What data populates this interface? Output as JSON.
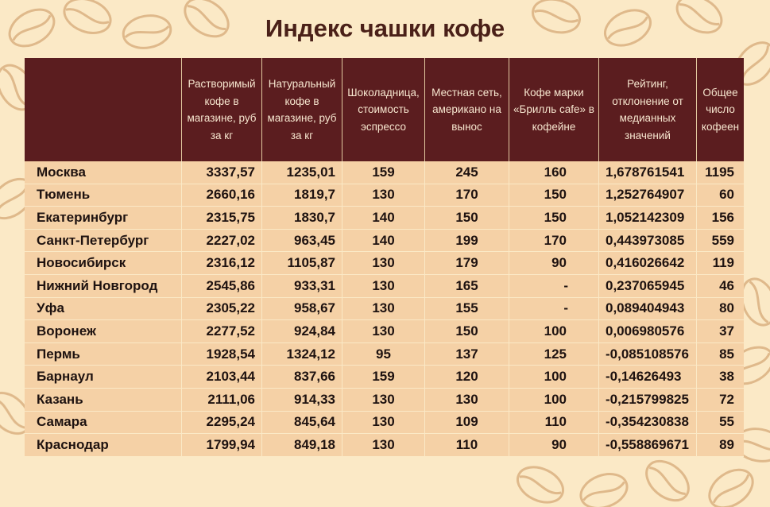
{
  "title": "Индекс чашки кофе",
  "headers": [
    "",
    "Растворимый кофе в магазине, руб за кг",
    "Натуральный кофе в магазине, руб за кг",
    "Шоколадница, стоимость эспрессо",
    "Местная сеть, американо на вынос",
    "Кофе марки «Брилль cafe» в кофейне",
    "Рейтинг, отклонение от медианных значений",
    "Общее число кофеен"
  ],
  "rows": [
    [
      "Москва",
      "3337,57",
      "1235,01",
      "159",
      "245",
      "160",
      "1,678761541",
      "1195"
    ],
    [
      "Тюмень",
      "2660,16",
      "1819,7",
      "130",
      "170",
      "150",
      "1,252764907",
      "60"
    ],
    [
      "Екатеринбург",
      "2315,75",
      "1830,7",
      "140",
      "150",
      "150",
      "1,052142309",
      "156"
    ],
    [
      "Санкт-Петербург",
      "2227,02",
      "963,45",
      "140",
      "199",
      "170",
      "0,443973085",
      "559"
    ],
    [
      "Новосибирск",
      "2316,12",
      "1105,87",
      "130",
      "179",
      "90",
      "0,416026642",
      "119"
    ],
    [
      "Нижний Новгород",
      "2545,86",
      "933,31",
      "130",
      "165",
      "-",
      "0,237065945",
      "46"
    ],
    [
      "Уфа",
      "2305,22",
      "958,67",
      "130",
      "155",
      "-",
      "0,089404943",
      "80"
    ],
    [
      "Воронеж",
      "2277,52",
      "924,84",
      "130",
      "150",
      "100",
      "0,006980576",
      "37"
    ],
    [
      "Пермь",
      "1928,54",
      "1324,12",
      "95",
      "137",
      "125",
      "-0,085108576",
      "85"
    ],
    [
      "Барнаул",
      "2103,44",
      "837,66",
      "159",
      "120",
      "100",
      "-0,14626493",
      "38"
    ],
    [
      "Казань",
      "2111,06",
      "914,33",
      "130",
      "130",
      "100",
      "-0,215799825",
      "72"
    ],
    [
      "Самара",
      "2295,24",
      "845,64",
      "130",
      "109",
      "110",
      "-0,354230838",
      "55"
    ],
    [
      "Краснодар",
      "1799,94",
      "849,18",
      "130",
      "110",
      "90",
      "-0,558869671",
      "89"
    ]
  ],
  "colors": {
    "header_bg": "#5b1d1f",
    "row_bg": "#f5d1a6",
    "page_bg": "#fbe9c6",
    "title": "#4a2018"
  },
  "decor": "coffee-beans"
}
